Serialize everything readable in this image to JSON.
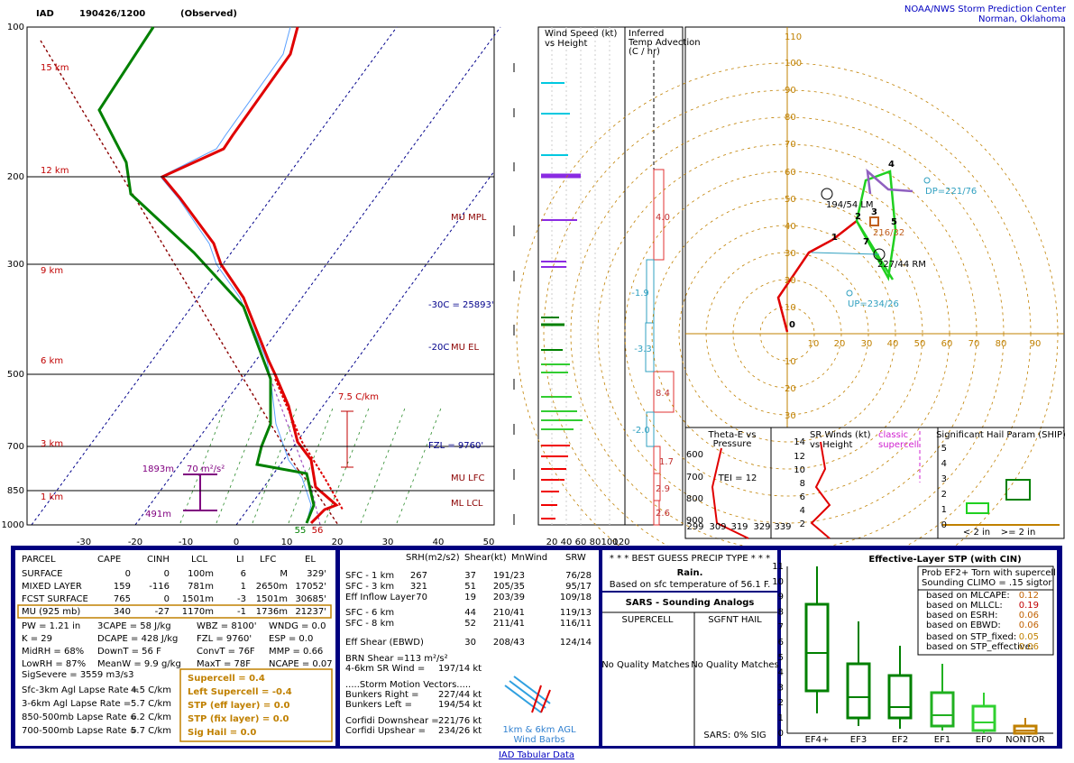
{
  "header": {
    "station": "IAD",
    "time": "190426/1200",
    "status": "(Observed)",
    "org": "NOAA/NWS Storm Prediction Center",
    "place": "Norman, Oklahoma"
  },
  "skewt": {
    "pressures": [
      "100",
      "200",
      "300",
      "500",
      "700",
      "850",
      "1000"
    ],
    "heights": [
      "15 km",
      "12 km",
      "9 km",
      "6 km",
      "3 km",
      "1 km"
    ],
    "temps": [
      "-30",
      "-20",
      "-10",
      "0",
      "10",
      "20",
      "30",
      "40",
      "50"
    ],
    "labels": {
      "mpl": "MU MPL",
      "el": "MU EL",
      "m30": "-30C = 25893'",
      "m20": "-20C",
      "fzl": "FZL = 9760'",
      "lfc": "MU LFC",
      "lcl": "ML LCL",
      "lapse": "7.5 C/km",
      "top": "1893m",
      "srh": "70 m²/s²",
      "bot": "491m",
      "td": "55",
      "t": "56"
    }
  },
  "wind_panel": {
    "title": [
      "Wind Speed (kt)",
      "vs Height"
    ],
    "ticks": [
      "20",
      "40",
      "60",
      "80",
      "100",
      "120"
    ]
  },
  "adv_panel": {
    "title": [
      "Inferred",
      "Temp Advection",
      "(C / hr)"
    ],
    "values": [
      "4.0",
      "-1.9",
      "-3.3",
      "8.4",
      "-2.0",
      "1.7",
      "2.9",
      "2.6"
    ]
  },
  "hodo": {
    "xticks": [
      "10",
      "20",
      "30",
      "40",
      "50",
      "60",
      "70",
      "80",
      "90"
    ],
    "yticks": [
      "110",
      "100",
      "90",
      "80",
      "70",
      "60",
      "50",
      "40",
      "30",
      "20",
      "10"
    ],
    "neg": [
      "10",
      "20",
      "30"
    ],
    "labels": {
      "lm": "194/54 LM",
      "rm": "227/44 RM",
      "mean": "216/32",
      "dp": "DP=221/76",
      "up": "UP=234/26"
    },
    "points": [
      "0",
      "1",
      "2",
      "3",
      "4",
      "5",
      "7"
    ]
  },
  "theta": {
    "title": [
      "Theta-E vs",
      "Pressure"
    ],
    "tei": "TEI = 12",
    "yticks": [
      "600",
      "700",
      "800",
      "900"
    ],
    "xticks": [
      "299",
      "309",
      "319",
      "329",
      "339"
    ]
  },
  "srw": {
    "title": [
      "SR Winds (kt)",
      "vs Height"
    ],
    "note": [
      "classic",
      "supercell"
    ],
    "yticks": [
      "14",
      "12",
      "10",
      "8",
      "6",
      "4",
      "2"
    ]
  },
  "ship": {
    "title": "Significant Hail Param (SHIP)",
    "yticks": [
      "5",
      "4",
      "3",
      "2",
      "1",
      "0"
    ],
    "cats": [
      "< 2 in",
      ">= 2 in"
    ]
  },
  "parcel": {
    "header": [
      "PARCEL",
      "CAPE",
      "CINH",
      "LCL",
      "LI",
      "LFC",
      "EL"
    ],
    "rows": [
      [
        "SURFACE",
        "0",
        "0",
        "100m",
        "6",
        "M",
        "329'"
      ],
      [
        "MIXED LAYER",
        "159",
        "-116",
        "781m",
        "1",
        "2650m",
        "17052'"
      ],
      [
        "FCST SURFACE",
        "765",
        "0",
        "1501m",
        "-3",
        "1501m",
        "30685'"
      ],
      [
        "MU   (925 mb)",
        "340",
        "-27",
        "1170m",
        "-1",
        "1736m",
        "21237'"
      ]
    ]
  },
  "indices": [
    [
      "PW = 1.21 in",
      "K = 29",
      "MidRH = 68%",
      "LowRH = 87%",
      "SigSevere = 3559 m3/s3"
    ],
    [
      "3CAPE = 58 J/kg",
      "DCAPE = 428 J/kg",
      "DownT = 56 F",
      "MeanW = 9.9 g/kg"
    ],
    [
      "WBZ = 8100'",
      "FZL = 9760'",
      "ConvT = 76F",
      "MaxT = 78F"
    ],
    [
      "WNDG = 0.0",
      "ESP = 0.0",
      "MMP = 0.66",
      "NCAPE = 0.07"
    ]
  ],
  "lapse": [
    [
      "Sfc-3km Agl Lapse Rate =",
      "4.5 C/km"
    ],
    [
      "3-6km Agl Lapse Rate =",
      "5.7 C/km"
    ],
    [
      "850-500mb Lapse Rate =",
      "6.2 C/km"
    ],
    [
      "700-500mb Lapse Rate =",
      "5.7 C/km"
    ]
  ],
  "composite": [
    "Supercell = 0.4",
    "Left Supercell = -0.4",
    "STP (eff layer) = 0.0",
    "STP (fix layer) = 0.0",
    "Sig Hail = 0.0"
  ],
  "kinematics": {
    "header": [
      "SRH(m2/s2)",
      "Shear(kt)",
      "MnWind",
      "SRW"
    ],
    "rows": [
      [
        "SFC - 1 km",
        "267",
        "37",
        "191/23",
        "76/28"
      ],
      [
        "SFC - 3 km",
        "321",
        "51",
        "205/35",
        "95/17"
      ],
      [
        "Eff Inflow Layer",
        "70",
        "19",
        "203/39",
        "109/18"
      ],
      [
        "SFC - 6 km",
        "44",
        "210/41",
        "119/13"
      ],
      [
        "SFC - 8 km",
        "52",
        "211/41",
        "116/11"
      ],
      [
        "Eff Shear (EBWD)",
        "30",
        "208/43",
        "124/14"
      ]
    ],
    "brn": [
      "BRN Shear =",
      "113 m²/s²"
    ],
    "sr46": [
      "4-6km SR Wind =",
      "197/14 kt"
    ],
    "motion_title": ".....Storm Motion Vectors.....",
    "motions": [
      [
        "Bunkers Right =",
        "227/44 kt"
      ],
      [
        "Bunkers Left =",
        "194/54 kt"
      ],
      [
        "Corfidi Downshear =",
        "221/76 kt"
      ],
      [
        "Corfidi Upshear =",
        "234/26 kt"
      ]
    ],
    "barbs": [
      "1km & 6km AGL",
      "Wind Barbs"
    ]
  },
  "precip": {
    "title": "* * * BEST GUESS PRECIP TYPE * * *",
    "type": "Rain.",
    "note": "Based on sfc temperature of 56.1 F."
  },
  "sars": {
    "title": "SARS - Sounding Analogs",
    "cols": [
      "SUPERCELL",
      "SGFNT HAIL"
    ],
    "matches": [
      "No Quality Matches",
      "No Quality Matches"
    ],
    "sig": "SARS:  0% SIG"
  },
  "stp": {
    "title": "Effective-Layer STP (with CIN)",
    "prob": [
      "Prob EF2+ Torn with supercell",
      "Sounding CLIMO = .15 sigtor"
    ],
    "based": [
      [
        "based on MLCAPE:",
        "0.12"
      ],
      [
        "based on MLLCL:",
        "0.19"
      ],
      [
        "based on ESRH:",
        "0.06"
      ],
      [
        "based on EBWD:",
        "0.06"
      ],
      [
        "based on STP_fixed:",
        "0.05"
      ],
      [
        "based on STP_effective:",
        "0.06"
      ]
    ],
    "yticks": [
      "11",
      "10",
      "9",
      "8",
      "7",
      "6",
      "5",
      "4",
      "3",
      "2",
      "1",
      "0"
    ],
    "cats": [
      "EF4+",
      "EF3",
      "EF2",
      "EF1",
      "EF0",
      "NONTOR"
    ]
  },
  "footer": "IAD Tabular Data"
}
